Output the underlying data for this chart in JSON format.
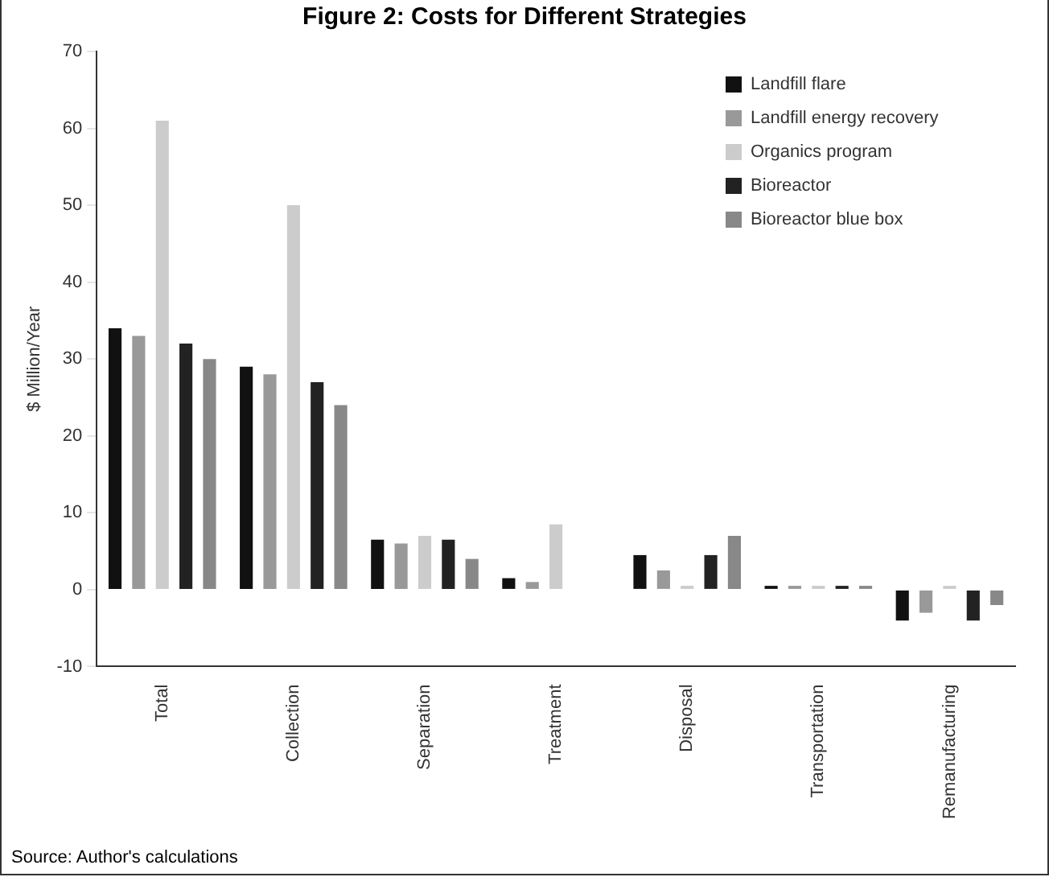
{
  "chart_data": {
    "type": "bar",
    "title": "Figure 2: Costs for Different Strategies",
    "ylabel": "$ Million/Year",
    "categories": [
      "Total",
      "Collection",
      "Separation",
      "Treatment",
      "Disposal",
      "Transportation",
      "Remanufacturing"
    ],
    "series": [
      {
        "name": "Landfill flare",
        "color": "#111111",
        "values": [
          34,
          29,
          6.5,
          1.5,
          4.5,
          0.5,
          -4
        ]
      },
      {
        "name": "Landfill energy recovery",
        "color": "#999999",
        "values": [
          33,
          28,
          6,
          1,
          2.5,
          0.5,
          -3
        ]
      },
      {
        "name": "Organics program",
        "color": "#cccccc",
        "values": [
          61,
          50,
          7,
          8.5,
          0.5,
          0.5,
          0.5
        ]
      },
      {
        "name": "Bioreactor",
        "color": "#222222",
        "values": [
          32,
          27,
          6.5,
          0,
          4.5,
          0.5,
          -4
        ]
      },
      {
        "name": "Bioreactor blue box",
        "color": "#888888",
        "values": [
          30,
          24,
          4,
          0,
          7,
          0.5,
          -2
        ]
      }
    ],
    "ylim": [
      -10,
      70
    ],
    "yticks": [
      -10,
      0,
      10,
      20,
      30,
      40,
      50,
      60,
      70
    ],
    "grid": false,
    "legend": "top right",
    "annotations": [
      "Source: Author's calculations"
    ]
  }
}
